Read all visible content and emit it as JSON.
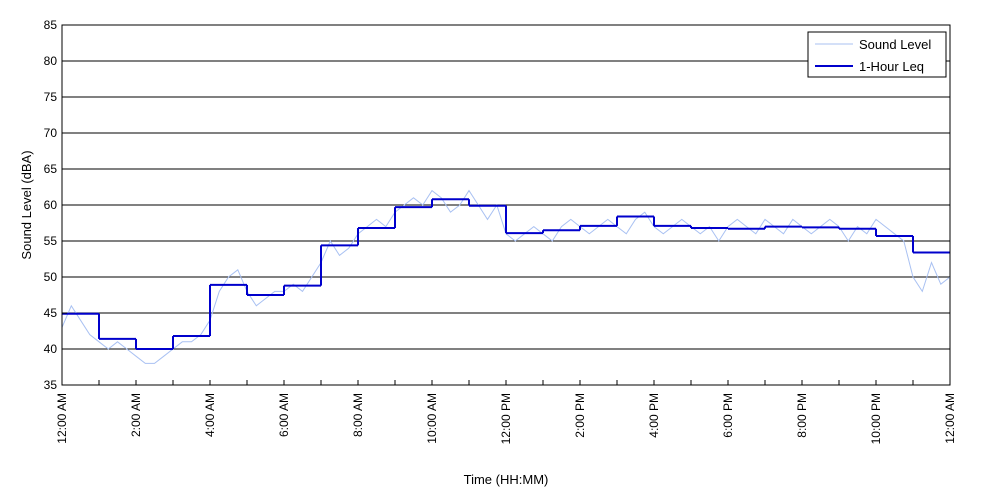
{
  "chart_data": {
    "type": "line",
    "title": "",
    "xlabel": "Time (HH:MM)",
    "ylabel": "Sound Level (dBA)",
    "xlim": [
      0,
      24
    ],
    "ylim": [
      35,
      85
    ],
    "yticks": [
      35,
      40,
      45,
      50,
      55,
      60,
      65,
      70,
      75,
      80,
      85
    ],
    "xticks": [
      {
        "value": 0,
        "label": "12:00 AM"
      },
      {
        "value": 2,
        "label": "2:00 AM"
      },
      {
        "value": 4,
        "label": "4:00 AM"
      },
      {
        "value": 6,
        "label": "6:00 AM"
      },
      {
        "value": 8,
        "label": "8:00 AM"
      },
      {
        "value": 10,
        "label": "10:00 AM"
      },
      {
        "value": 12,
        "label": "12:00 PM"
      },
      {
        "value": 14,
        "label": "2:00 PM"
      },
      {
        "value": 16,
        "label": "4:00 PM"
      },
      {
        "value": 18,
        "label": "6:00 PM"
      },
      {
        "value": 20,
        "label": "8:00 PM"
      },
      {
        "value": 22,
        "label": "10:00 PM"
      },
      {
        "value": 24,
        "label": "12:00 AM"
      }
    ],
    "grid": "horizontal",
    "legend_position": "top-right",
    "series": [
      {
        "name": "Sound Level",
        "color": "#a9c1f2",
        "x": [
          0.0,
          0.25,
          0.5,
          0.75,
          1.0,
          1.25,
          1.5,
          1.75,
          2.0,
          2.25,
          2.5,
          2.75,
          3.0,
          3.25,
          3.5,
          3.75,
          4.0,
          4.25,
          4.5,
          4.75,
          5.0,
          5.25,
          5.5,
          5.75,
          6.0,
          6.25,
          6.5,
          6.75,
          7.0,
          7.25,
          7.5,
          7.75,
          8.0,
          8.25,
          8.5,
          8.75,
          9.0,
          9.25,
          9.5,
          9.75,
          10.0,
          10.25,
          10.5,
          10.75,
          11.0,
          11.25,
          11.5,
          11.75,
          12.0,
          12.25,
          12.5,
          12.75,
          13.0,
          13.25,
          13.5,
          13.75,
          14.0,
          14.25,
          14.5,
          14.75,
          15.0,
          15.25,
          15.5,
          15.75,
          16.0,
          16.25,
          16.5,
          16.75,
          17.0,
          17.25,
          17.5,
          17.75,
          18.0,
          18.25,
          18.5,
          18.75,
          19.0,
          19.25,
          19.5,
          19.75,
          20.0,
          20.25,
          20.5,
          20.75,
          21.0,
          21.25,
          21.5,
          21.75,
          22.0,
          22.25,
          22.5,
          22.75,
          23.0,
          23.25,
          23.5,
          23.75,
          24.0
        ],
        "values": [
          43,
          46,
          44,
          42,
          41,
          40,
          41,
          40,
          39,
          38,
          38,
          39,
          40,
          41,
          41,
          42,
          44,
          48,
          50,
          51,
          48,
          46,
          47,
          48,
          48,
          49,
          48,
          50,
          52,
          55,
          53,
          54,
          56,
          57,
          58,
          57,
          59,
          60,
          61,
          60,
          62,
          61,
          59,
          60,
          62,
          60,
          58,
          60,
          56,
          55,
          56,
          57,
          56,
          55,
          57,
          58,
          57,
          56,
          57,
          58,
          57,
          56,
          58,
          59,
          57,
          56,
          57,
          58,
          57,
          56,
          57,
          55,
          57,
          58,
          57,
          56,
          58,
          57,
          56,
          58,
          57,
          56,
          57,
          58,
          57,
          55,
          57,
          56,
          58,
          57,
          56,
          55,
          50,
          48,
          52,
          49,
          50
        ]
      },
      {
        "name": "1-Hour Leq",
        "color": "#0000cc",
        "x": [
          0,
          1,
          2,
          3,
          4,
          5,
          6,
          7,
          8,
          9,
          10,
          11,
          12,
          13,
          14,
          15,
          16,
          17,
          18,
          19,
          20,
          21,
          22,
          23
        ],
        "values": [
          44.9,
          41.4,
          40.0,
          41.8,
          48.9,
          47.5,
          48.8,
          54.4,
          56.8,
          59.7,
          60.8,
          59.9,
          56.1,
          56.5,
          57.1,
          58.4,
          57.1,
          56.8,
          56.7,
          57.0,
          56.9,
          56.7,
          55.7,
          53.4
        ]
      }
    ]
  }
}
